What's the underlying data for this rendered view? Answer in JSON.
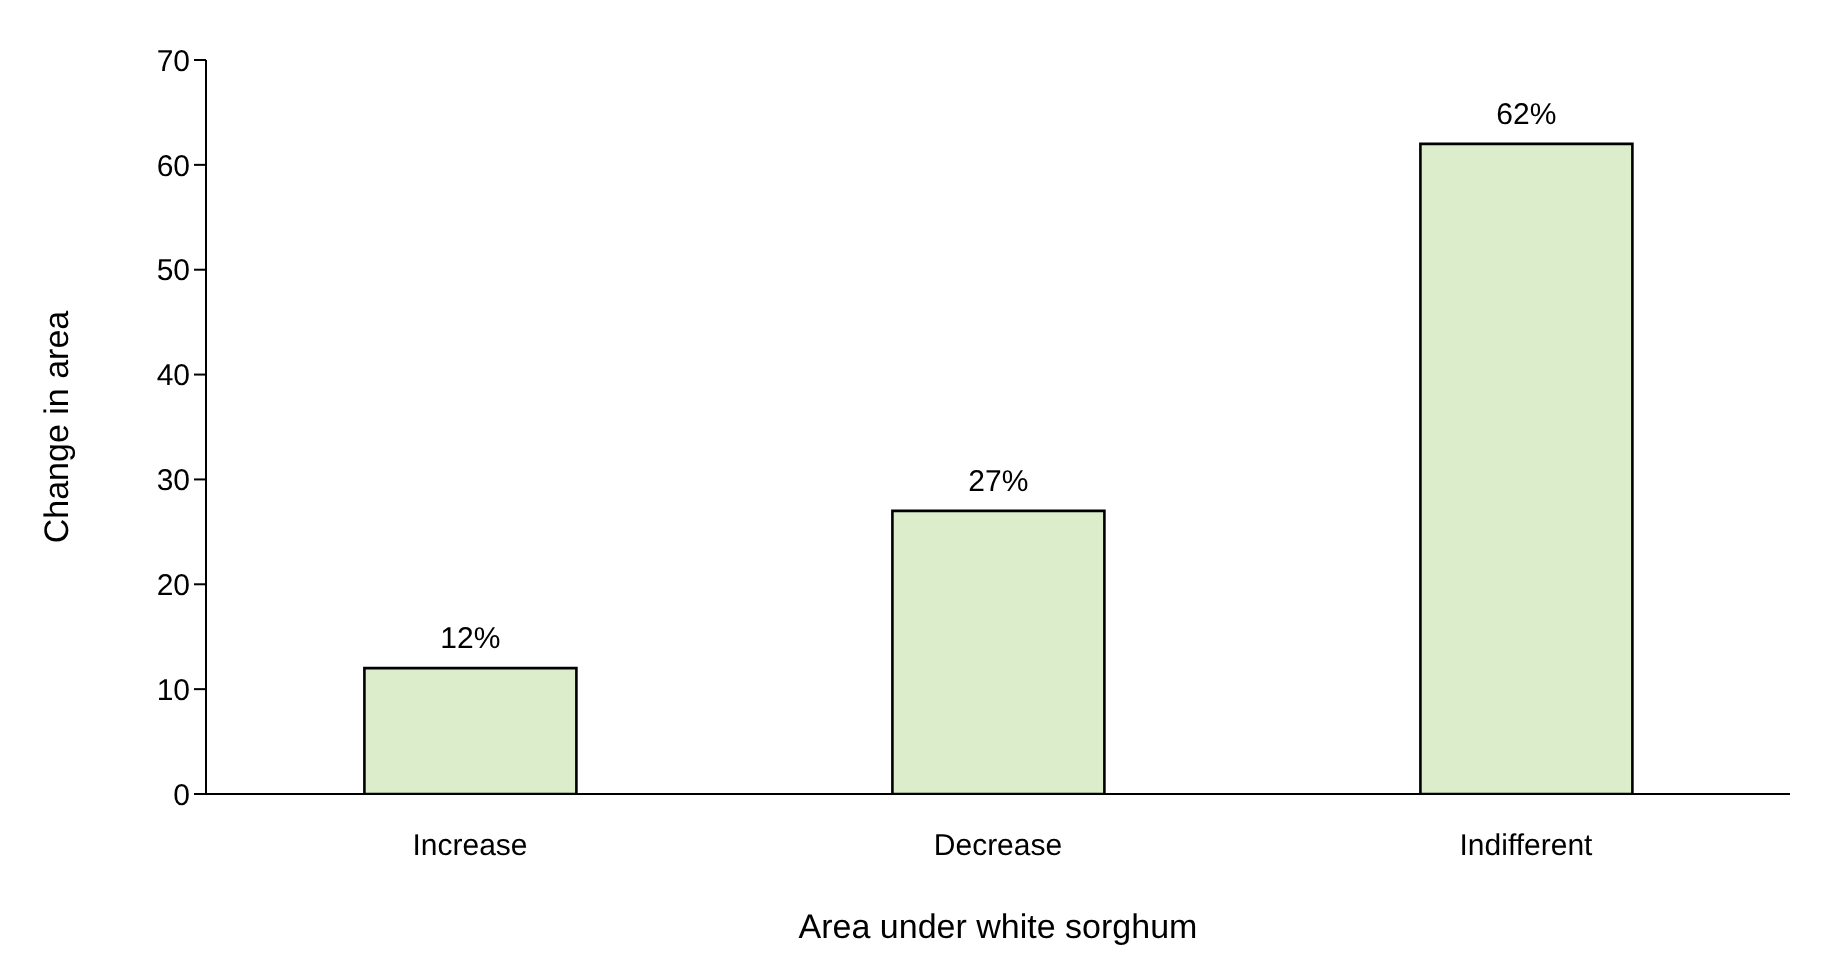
{
  "chart_data": {
    "type": "bar",
    "xlabel": "Area under white sorghum",
    "ylabel": "Change in area",
    "categories": [
      "Increase",
      "Decrease",
      "Indifferent"
    ],
    "values": [
      12,
      27,
      62
    ],
    "value_labels": [
      "12%",
      "27%",
      "62%"
    ],
    "color": "#dcedcc",
    "ylim": [
      0,
      70
    ],
    "yticks": [
      0,
      10,
      20,
      30,
      40,
      50,
      60,
      70
    ],
    "grid": false
  }
}
